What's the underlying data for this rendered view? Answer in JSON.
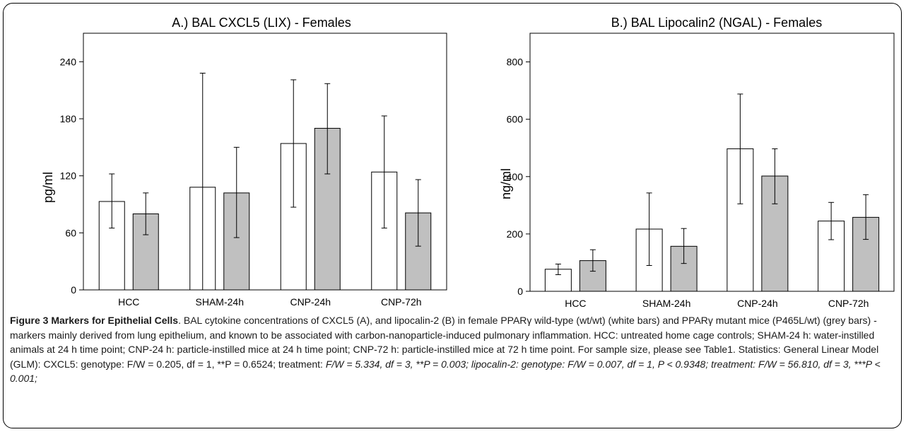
{
  "colors": {
    "bar_wt": "#ffffff",
    "bar_mut": "#c0c0c0",
    "stroke": "#000000"
  },
  "chart_data": [
    {
      "type": "bar",
      "title": "A.) BAL CXCL5 (LIX) - Females",
      "xlabel": "",
      "ylabel": "pg/ml",
      "ylim": [
        0,
        270
      ],
      "yticks": [
        0,
        60,
        120,
        180,
        240
      ],
      "categories": [
        "HCC",
        "SHAM-24h",
        "CNP-24h",
        "CNP-72h"
      ],
      "series": [
        {
          "color": "#ffffff",
          "values": [
            93,
            108,
            154,
            124
          ],
          "err_low": [
            65,
            0,
            87,
            65
          ],
          "err_high": [
            122,
            228,
            221,
            183
          ]
        },
        {
          "color": "#c0c0c0",
          "values": [
            80,
            102,
            170,
            81
          ],
          "err_low": [
            58,
            55,
            122,
            46
          ],
          "err_high": [
            102,
            150,
            217,
            116
          ]
        }
      ],
      "grid": false
    },
    {
      "type": "bar",
      "title": "B.) BAL Lipocalin2 (NGAL) - Females",
      "xlabel": "",
      "ylabel": "ng/ml",
      "ylim": [
        0,
        900
      ],
      "yticks": [
        0,
        200,
        400,
        600,
        800
      ],
      "categories": [
        "HCC",
        "SHAM-24h",
        "CNP-24h",
        "CNP-72h"
      ],
      "series": [
        {
          "color": "#ffffff",
          "values": [
            77,
            217,
            497,
            245
          ],
          "err_low": [
            58,
            90,
            305,
            180
          ],
          "err_high": [
            95,
            343,
            688,
            310
          ]
        },
        {
          "color": "#c0c0c0",
          "values": [
            107,
            157,
            402,
            258
          ],
          "err_low": [
            70,
            97,
            305,
            181
          ],
          "err_high": [
            145,
            219,
            497,
            337
          ]
        }
      ],
      "grid": false
    }
  ],
  "caption": {
    "title": "Figure 3 Markers for Epithelial Cells",
    "body": ". BAL cytokine concentrations of CXCL5 (A), and lipocalin-2 (B) in female PPARγ wild-type (wt/wt) (white bars) and PPARγ mutant mice (P465L/wt) (grey bars) - markers mainly derived from lung epithelium, and known to be associated with carbon-nanoparticle-induced pulmonary inflammation. HCC: untreated home cage controls; SHAM-24 h: water-instilled animals at 24 h time point; CNP-24 h: particle-instilled mice at 24 h time point; CNP-72 h: particle-instilled mice at 72 h time point. For sample size, please see Table1. Statistics: General Linear Model (GLM): CXCL5: genotype: F/W = 0.205, df = 1, **P = 0.6524; treatment: ",
    "italic": "F/W = 5.334, df = 3, **P = 0.003; lipocalin-2: genotype: F/W = 0.007, df = 1, P < 0.9348; treatment: F/W = 56.810, df = 3, ***P < 0.001;"
  }
}
